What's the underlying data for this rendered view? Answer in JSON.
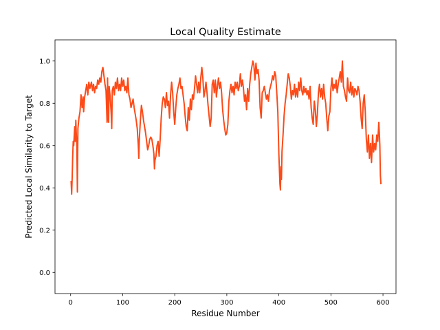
{
  "chart_data": {
    "type": "line",
    "title": "Local Quality Estimate",
    "xlabel": "Residue Number",
    "ylabel": "Predicted Local Similarity to Target",
    "xlim": [
      -30,
      625
    ],
    "ylim": [
      -0.1,
      1.1
    ],
    "xticks": [
      0,
      100,
      200,
      300,
      400,
      500,
      600
    ],
    "yticks": [
      0.0,
      0.2,
      0.4,
      0.6,
      0.8,
      1.0
    ],
    "xtick_labels": [
      "0",
      "100",
      "200",
      "300",
      "400",
      "500",
      "600"
    ],
    "ytick_labels": [
      "0.0",
      "0.2",
      "0.4",
      "0.6",
      "0.8",
      "1.0"
    ],
    "grid": false,
    "series": [
      {
        "color": "#fc4a18",
        "points": [
          [
            1,
            0.43
          ],
          [
            2,
            0.37
          ],
          [
            3,
            0.45
          ],
          [
            4,
            0.55
          ],
          [
            5,
            0.62
          ],
          [
            6,
            0.6
          ],
          [
            7,
            0.65
          ],
          [
            8,
            0.69
          ],
          [
            9,
            0.62
          ],
          [
            10,
            0.72
          ],
          [
            11,
            0.65
          ],
          [
            12,
            0.6
          ],
          [
            13,
            0.38
          ],
          [
            14,
            0.68
          ],
          [
            16,
            0.73
          ],
          [
            18,
            0.76
          ],
          [
            20,
            0.84
          ],
          [
            22,
            0.78
          ],
          [
            24,
            0.83
          ],
          [
            25,
            0.76
          ],
          [
            27,
            0.83
          ],
          [
            29,
            0.86
          ],
          [
            31,
            0.89
          ],
          [
            33,
            0.84
          ],
          [
            35,
            0.9
          ],
          [
            37,
            0.87
          ],
          [
            40,
            0.9
          ],
          [
            42,
            0.86
          ],
          [
            44,
            0.89
          ],
          [
            46,
            0.85
          ],
          [
            48,
            0.88
          ],
          [
            50,
            0.87
          ],
          [
            52,
            0.91
          ],
          [
            54,
            0.89
          ],
          [
            56,
            0.92
          ],
          [
            58,
            0.9
          ],
          [
            60,
            0.95
          ],
          [
            62,
            0.97
          ],
          [
            64,
            0.93
          ],
          [
            66,
            0.89
          ],
          [
            68,
            0.86
          ],
          [
            70,
            0.71
          ],
          [
            71,
            0.92
          ],
          [
            72,
            0.74
          ],
          [
            73,
            0.71
          ],
          [
            74,
            0.88
          ],
          [
            76,
            0.83
          ],
          [
            78,
            0.75
          ],
          [
            79,
            0.68
          ],
          [
            80,
            0.86
          ],
          [
            82,
            0.88
          ],
          [
            84,
            0.84
          ],
          [
            86,
            0.9
          ],
          [
            88,
            0.87
          ],
          [
            90,
            0.92
          ],
          [
            92,
            0.86
          ],
          [
            94,
            0.89
          ],
          [
            96,
            0.86
          ],
          [
            98,
            0.92
          ],
          [
            100,
            0.88
          ],
          [
            102,
            0.91
          ],
          [
            104,
            0.86
          ],
          [
            106,
            0.88
          ],
          [
            108,
            0.85
          ],
          [
            110,
            0.92
          ],
          [
            112,
            0.84
          ],
          [
            114,
            0.82
          ],
          [
            116,
            0.78
          ],
          [
            118,
            0.8
          ],
          [
            120,
            0.82
          ],
          [
            122,
            0.78
          ],
          [
            124,
            0.75
          ],
          [
            126,
            0.72
          ],
          [
            128,
            0.68
          ],
          [
            130,
            0.6
          ],
          [
            131,
            0.54
          ],
          [
            132,
            0.63
          ],
          [
            134,
            0.72
          ],
          [
            136,
            0.79
          ],
          [
            138,
            0.76
          ],
          [
            140,
            0.72
          ],
          [
            142,
            0.69
          ],
          [
            144,
            0.66
          ],
          [
            146,
            0.62
          ],
          [
            148,
            0.58
          ],
          [
            150,
            0.6
          ],
          [
            152,
            0.63
          ],
          [
            154,
            0.64
          ],
          [
            156,
            0.63
          ],
          [
            158,
            0.6
          ],
          [
            160,
            0.56
          ],
          [
            161,
            0.49
          ],
          [
            162,
            0.53
          ],
          [
            164,
            0.55
          ],
          [
            166,
            0.6
          ],
          [
            168,
            0.62
          ],
          [
            170,
            0.55
          ],
          [
            172,
            0.63
          ],
          [
            174,
            0.73
          ],
          [
            176,
            0.8
          ],
          [
            178,
            0.83
          ],
          [
            180,
            0.82
          ],
          [
            182,
            0.78
          ],
          [
            184,
            0.85
          ],
          [
            186,
            0.79
          ],
          [
            188,
            0.81
          ],
          [
            190,
            0.73
          ],
          [
            192,
            0.84
          ],
          [
            194,
            0.9
          ],
          [
            196,
            0.85
          ],
          [
            198,
            0.76
          ],
          [
            200,
            0.7
          ],
          [
            202,
            0.78
          ],
          [
            204,
            0.84
          ],
          [
            206,
            0.87
          ],
          [
            208,
            0.89
          ],
          [
            210,
            0.92
          ],
          [
            212,
            0.87
          ],
          [
            214,
            0.88
          ],
          [
            216,
            0.84
          ],
          [
            218,
            0.8
          ],
          [
            220,
            0.74
          ],
          [
            222,
            0.69
          ],
          [
            224,
            0.67
          ],
          [
            226,
            0.78
          ],
          [
            228,
            0.72
          ],
          [
            230,
            0.82
          ],
          [
            232,
            0.77
          ],
          [
            234,
            0.84
          ],
          [
            236,
            0.82
          ],
          [
            238,
            0.87
          ],
          [
            240,
            0.93
          ],
          [
            242,
            0.89
          ],
          [
            244,
            0.85
          ],
          [
            246,
            0.9
          ],
          [
            248,
            0.85
          ],
          [
            250,
            0.92
          ],
          [
            252,
            0.97
          ],
          [
            254,
            0.92
          ],
          [
            256,
            0.83
          ],
          [
            258,
            0.86
          ],
          [
            260,
            0.9
          ],
          [
            262,
            0.85
          ],
          [
            264,
            0.79
          ],
          [
            266,
            0.74
          ],
          [
            268,
            0.69
          ],
          [
            270,
            0.73
          ],
          [
            272,
            0.89
          ],
          [
            274,
            0.91
          ],
          [
            276,
            0.85
          ],
          [
            278,
            0.91
          ],
          [
            280,
            0.83
          ],
          [
            282,
            0.88
          ],
          [
            284,
            0.92
          ],
          [
            286,
            0.87
          ],
          [
            288,
            0.9
          ],
          [
            290,
            0.85
          ],
          [
            292,
            0.77
          ],
          [
            294,
            0.72
          ],
          [
            296,
            0.68
          ],
          [
            298,
            0.65
          ],
          [
            300,
            0.66
          ],
          [
            302,
            0.7
          ],
          [
            304,
            0.81
          ],
          [
            306,
            0.86
          ],
          [
            308,
            0.89
          ],
          [
            310,
            0.85
          ],
          [
            312,
            0.88
          ],
          [
            314,
            0.84
          ],
          [
            316,
            0.9
          ],
          [
            318,
            0.87
          ],
          [
            320,
            0.9
          ],
          [
            322,
            0.86
          ],
          [
            324,
            0.88
          ],
          [
            326,
            0.94
          ],
          [
            328,
            0.88
          ],
          [
            330,
            0.91
          ],
          [
            332,
            0.87
          ],
          [
            334,
            0.81
          ],
          [
            336,
            0.84
          ],
          [
            338,
            0.77
          ],
          [
            340,
            0.87
          ],
          [
            342,
            0.81
          ],
          [
            344,
            0.89
          ],
          [
            346,
            0.94
          ],
          [
            348,
            0.97
          ],
          [
            350,
            1.0
          ],
          [
            352,
            0.98
          ],
          [
            354,
            0.91
          ],
          [
            356,
            0.99
          ],
          [
            358,
            0.94
          ],
          [
            360,
            0.96
          ],
          [
            362,
            0.91
          ],
          [
            364,
            0.78
          ],
          [
            366,
            0.73
          ],
          [
            368,
            0.85
          ],
          [
            370,
            0.86
          ],
          [
            372,
            0.88
          ],
          [
            374,
            0.85
          ],
          [
            376,
            0.82
          ],
          [
            378,
            0.84
          ],
          [
            380,
            0.81
          ],
          [
            382,
            0.86
          ],
          [
            384,
            0.88
          ],
          [
            386,
            0.9
          ],
          [
            388,
            0.93
          ],
          [
            390,
            0.91
          ],
          [
            392,
            0.95
          ],
          [
            394,
            0.93
          ],
          [
            396,
            0.85
          ],
          [
            398,
            0.76
          ],
          [
            400,
            0.56
          ],
          [
            402,
            0.42
          ],
          [
            403,
            0.39
          ],
          [
            404,
            0.5
          ],
          [
            405,
            0.44
          ],
          [
            406,
            0.57
          ],
          [
            408,
            0.65
          ],
          [
            410,
            0.74
          ],
          [
            412,
            0.8
          ],
          [
            414,
            0.84
          ],
          [
            416,
            0.89
          ],
          [
            418,
            0.94
          ],
          [
            420,
            0.92
          ],
          [
            422,
            0.88
          ],
          [
            424,
            0.82
          ],
          [
            426,
            0.86
          ],
          [
            428,
            0.84
          ],
          [
            430,
            0.89
          ],
          [
            432,
            0.83
          ],
          [
            434,
            0.87
          ],
          [
            436,
            0.83
          ],
          [
            438,
            0.9
          ],
          [
            440,
            0.86
          ],
          [
            442,
            0.92
          ],
          [
            444,
            0.86
          ],
          [
            446,
            0.84
          ],
          [
            448,
            0.88
          ],
          [
            450,
            0.85
          ],
          [
            452,
            0.87
          ],
          [
            454,
            0.84
          ],
          [
            456,
            0.86
          ],
          [
            458,
            0.82
          ],
          [
            460,
            0.88
          ],
          [
            462,
            0.78
          ],
          [
            464,
            0.73
          ],
          [
            466,
            0.7
          ],
          [
            468,
            0.81
          ],
          [
            470,
            0.77
          ],
          [
            472,
            0.69
          ],
          [
            474,
            0.75
          ],
          [
            476,
            0.85
          ],
          [
            478,
            0.89
          ],
          [
            480,
            0.83
          ],
          [
            482,
            0.87
          ],
          [
            484,
            0.82
          ],
          [
            486,
            0.89
          ],
          [
            488,
            0.83
          ],
          [
            490,
            0.8
          ],
          [
            492,
            0.73
          ],
          [
            494,
            0.67
          ],
          [
            496,
            0.74
          ],
          [
            498,
            0.76
          ],
          [
            500,
            0.87
          ],
          [
            502,
            0.92
          ],
          [
            504,
            0.86
          ],
          [
            506,
            0.89
          ],
          [
            508,
            0.87
          ],
          [
            510,
            0.91
          ],
          [
            512,
            0.85
          ],
          [
            514,
            0.89
          ],
          [
            516,
            0.92
          ],
          [
            518,
            0.95
          ],
          [
            520,
            0.9
          ],
          [
            522,
            1.0
          ],
          [
            524,
            0.88
          ],
          [
            526,
            0.86
          ],
          [
            528,
            0.83
          ],
          [
            530,
            0.81
          ],
          [
            532,
            0.92
          ],
          [
            534,
            0.86
          ],
          [
            536,
            0.85
          ],
          [
            538,
            0.9
          ],
          [
            540,
            0.84
          ],
          [
            542,
            0.88
          ],
          [
            544,
            0.83
          ],
          [
            546,
            0.87
          ],
          [
            548,
            0.86
          ],
          [
            550,
            0.84
          ],
          [
            552,
            0.88
          ],
          [
            554,
            0.86
          ],
          [
            556,
            0.81
          ],
          [
            558,
            0.73
          ],
          [
            560,
            0.68
          ],
          [
            562,
            0.8
          ],
          [
            564,
            0.84
          ],
          [
            566,
            0.76
          ],
          [
            568,
            0.63
          ],
          [
            570,
            0.57
          ],
          [
            572,
            0.65
          ],
          [
            574,
            0.54
          ],
          [
            576,
            0.61
          ],
          [
            578,
            0.52
          ],
          [
            580,
            0.65
          ],
          [
            582,
            0.57
          ],
          [
            584,
            0.61
          ],
          [
            586,
            0.58
          ],
          [
            588,
            0.65
          ],
          [
            590,
            0.62
          ],
          [
            592,
            0.71
          ],
          [
            593,
            0.66
          ],
          [
            594,
            0.6
          ],
          [
            595,
            0.46
          ],
          [
            596,
            0.42
          ]
        ]
      }
    ]
  }
}
